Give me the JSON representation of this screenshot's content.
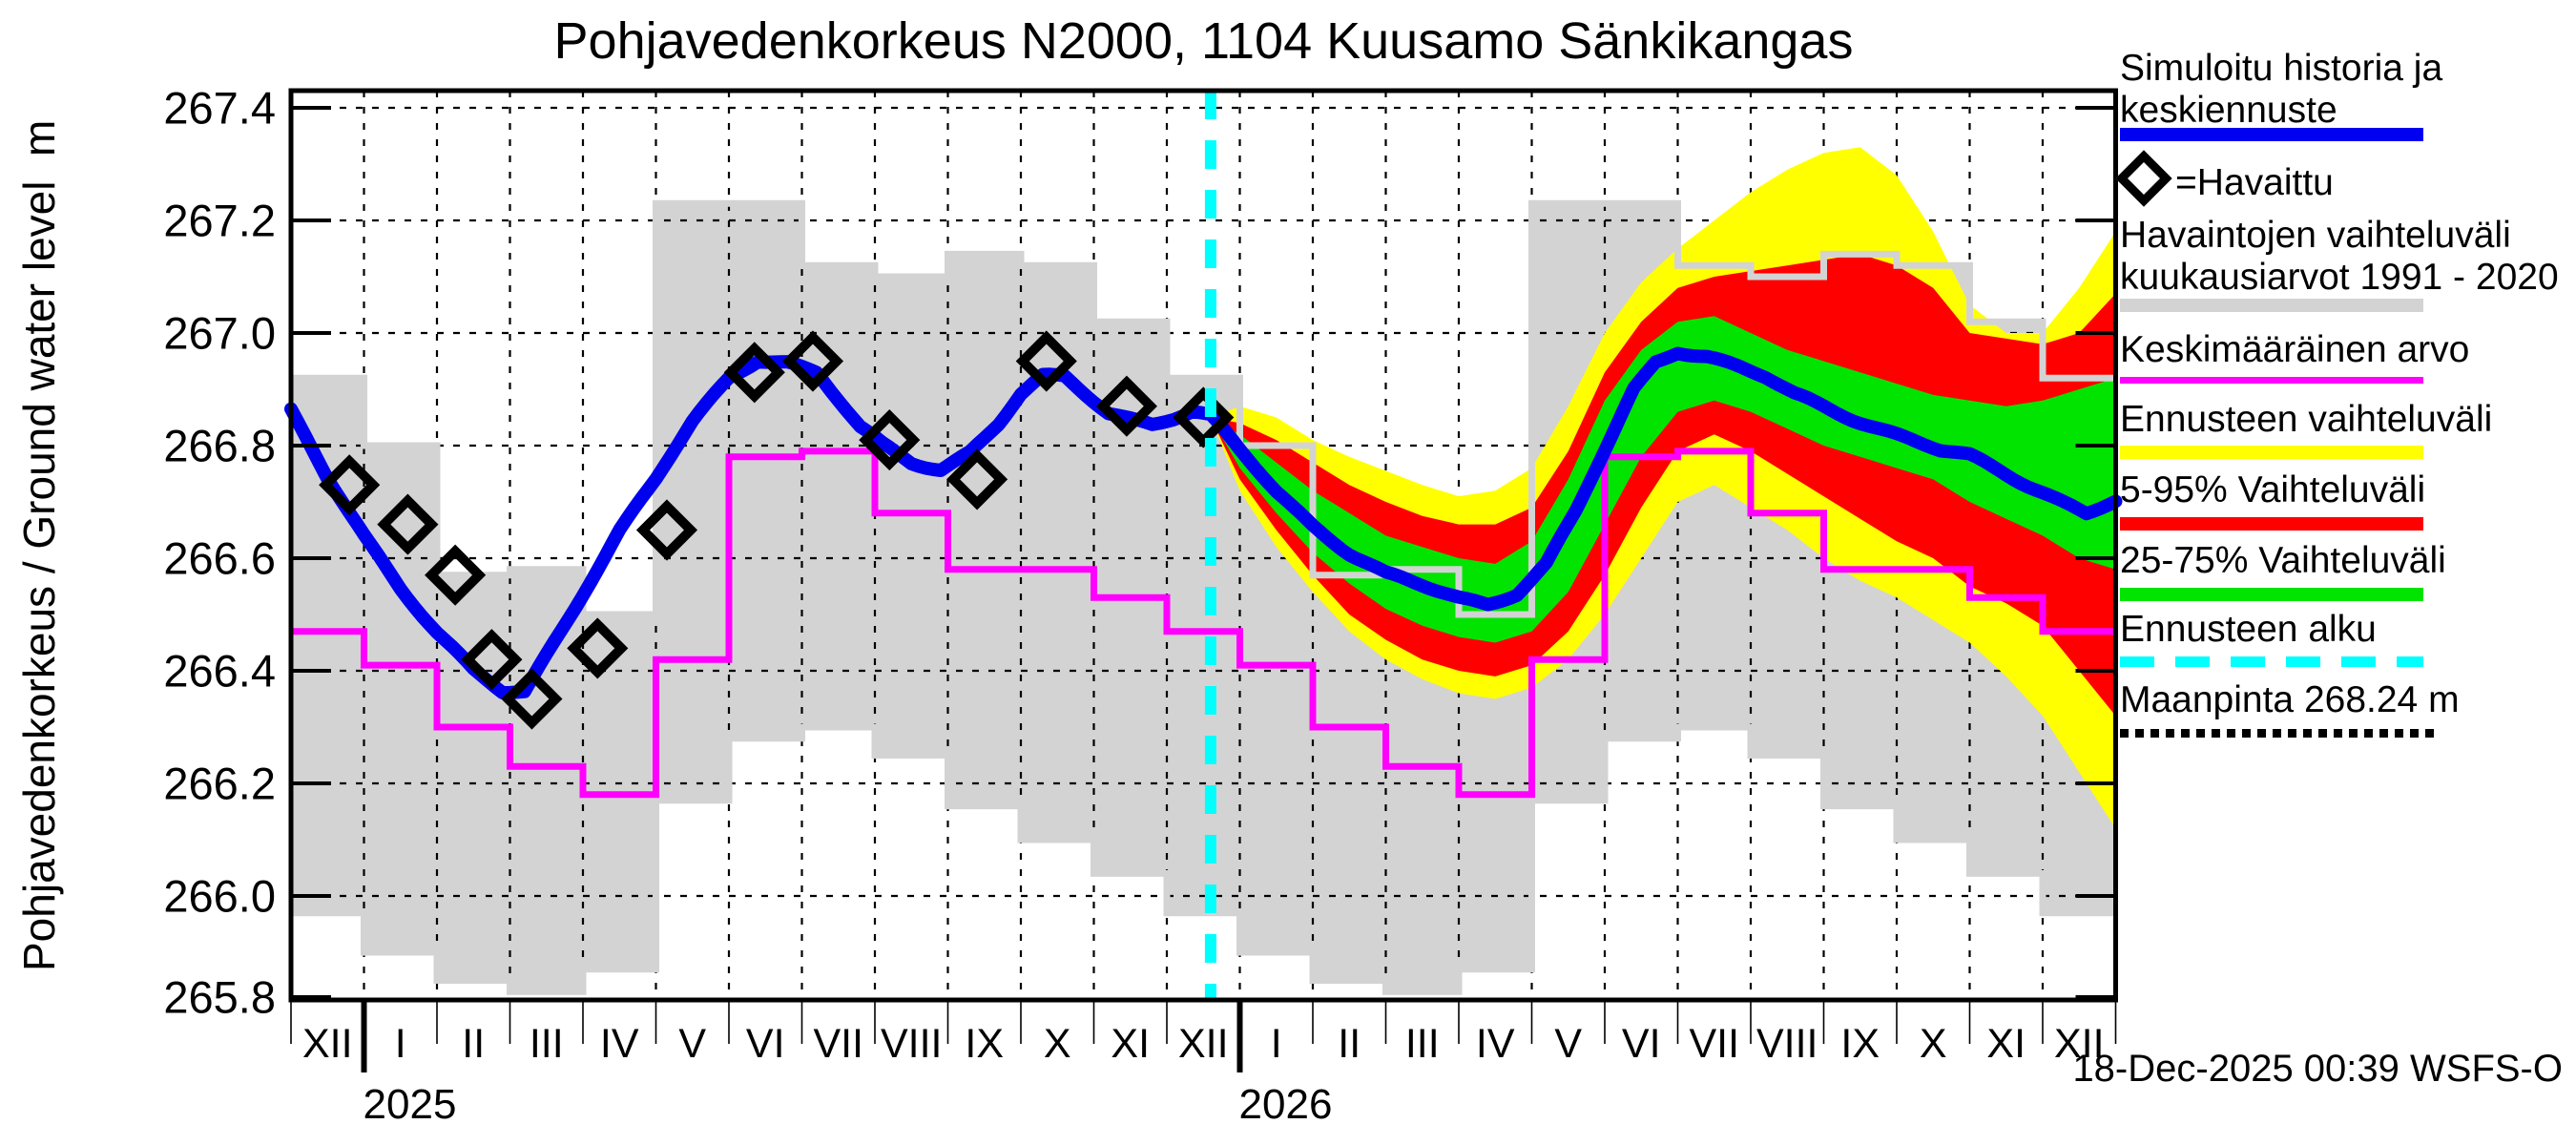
{
  "title": "Pohjavedenkorkeus N2000, 1104 Kuusamo Sänkikangas",
  "y_axis": {
    "label": "Pohjavedenkorkeus / Ground water level  m",
    "tick_labels": [
      "267.4",
      "267.2",
      "267.0",
      "266.8",
      "266.6",
      "266.4",
      "266.2",
      "266.0",
      "265.8"
    ],
    "min": 265.8,
    "max": 267.4,
    "tick_step": 0.2
  },
  "x_axis": {
    "month_labels": [
      "XII",
      "I",
      "II",
      "III",
      "IV",
      "V",
      "VI",
      "VII",
      "VIII",
      "IX",
      "X",
      "XI",
      "XII",
      "I",
      "II",
      "III",
      "IV",
      "V",
      "VI",
      "VII",
      "VIII",
      "IX",
      "X",
      "XI",
      "XII"
    ],
    "year_labels": [
      {
        "label": "2025",
        "boundary_month": 1
      },
      {
        "label": "2026",
        "boundary_month": 13
      }
    ]
  },
  "footer": {
    "timestamp": "18-Dec-2025 00:39 WSFS-O"
  },
  "colors": {
    "simulated_line": "#0000F0",
    "observed_marker": "#000000",
    "climatology_band": "#D3D3D3",
    "mean_line": "#FF00FF",
    "forecast_minmax": "#FFFF00",
    "forecast_5_95": "#FF0000",
    "forecast_25_75": "#00E400",
    "forecast_start": "#00FFFF",
    "ground_surface": "#000000",
    "grid": "#000000"
  },
  "legend": {
    "items": [
      {
        "label": "Simuloitu historia ja keskiennuste",
        "swatch": "line",
        "color": "#0000F0"
      },
      {
        "label": "=Havaittu",
        "swatch": "diamond",
        "color": "#000000"
      },
      {
        "label": "Havaintojen vaihteluväli kuukausiarvot 1991 - 2020",
        "swatch": "band",
        "color": "#D3D3D3"
      },
      {
        "label": "Keskimääräinen arvo",
        "swatch": "line",
        "color": "#FF00FF"
      },
      {
        "label": "Ennusteen vaihteluväli",
        "swatch": "band",
        "color": "#FFFF00"
      },
      {
        "label": "5-95% Vaihteluväli",
        "swatch": "band",
        "color": "#FF0000"
      },
      {
        "label": "25-75% Vaihteluväli",
        "swatch": "band",
        "color": "#00E400"
      },
      {
        "label": "Ennusteen alku",
        "swatch": "dashed-line",
        "color": "#00FFFF"
      },
      {
        "label": "Maanpinta 268.24 m",
        "swatch": "dotted-line",
        "color": "#000000"
      }
    ]
  },
  "chart_data": {
    "type": "line",
    "x_unit": "months from 2024-12-01 (0 = 1 Dec 2024, 24 = 1 Dec 2026)",
    "ylabel": "Pohjavedenkorkeus / Ground water level m",
    "ylim": [
      265.8,
      267.4
    ],
    "xlim_months": [
      0,
      25
    ],
    "grid": true,
    "legend_position": "right",
    "forecast_start_x": 12.6,
    "ground_surface_m": 268.24,
    "climatology_1991_2020_monthly": {
      "months": [
        "Dec",
        "Jan",
        "Feb",
        "Mar",
        "Apr",
        "May",
        "Jun",
        "Jul",
        "Aug",
        "Sep",
        "Oct",
        "Nov"
      ],
      "max": [
        266.92,
        266.8,
        266.57,
        266.58,
        266.5,
        267.23,
        267.23,
        267.12,
        267.1,
        267.14,
        267.12,
        267.02
      ],
      "min": [
        265.97,
        265.9,
        265.85,
        265.83,
        265.87,
        266.17,
        266.28,
        266.3,
        266.25,
        266.16,
        266.1,
        266.04
      ],
      "mean": [
        266.47,
        266.41,
        266.3,
        266.23,
        266.18,
        266.42,
        266.78,
        266.79,
        266.68,
        266.58,
        266.58,
        266.53
      ]
    },
    "observed_points": [
      [
        0.8,
        266.73
      ],
      [
        1.6,
        266.66
      ],
      [
        2.25,
        266.57
      ],
      [
        2.75,
        266.42
      ],
      [
        3.3,
        266.35
      ],
      [
        4.2,
        266.44
      ],
      [
        5.15,
        266.65
      ],
      [
        6.35,
        266.93
      ],
      [
        7.15,
        266.95
      ],
      [
        8.2,
        266.81
      ],
      [
        9.4,
        266.74
      ],
      [
        10.35,
        266.95
      ],
      [
        11.45,
        266.87
      ],
      [
        12.5,
        266.85
      ]
    ],
    "simulated_and_forecast_mean": [
      [
        0,
        266.86
      ],
      [
        0.5,
        266.74
      ],
      [
        1.0,
        266.64
      ],
      [
        1.5,
        266.55
      ],
      [
        2.0,
        266.47
      ],
      [
        2.5,
        266.4
      ],
      [
        2.9,
        266.36
      ],
      [
        3.2,
        266.36
      ],
      [
        3.6,
        266.45
      ],
      [
        4.0,
        266.54
      ],
      [
        4.5,
        266.65
      ],
      [
        5.0,
        266.74
      ],
      [
        5.5,
        266.84
      ],
      [
        6.0,
        266.92
      ],
      [
        6.4,
        266.955
      ],
      [
        6.8,
        266.95
      ],
      [
        7.2,
        266.93
      ],
      [
        7.5,
        266.88
      ],
      [
        7.8,
        266.83
      ],
      [
        8.1,
        266.8
      ],
      [
        8.5,
        266.77
      ],
      [
        8.9,
        266.76
      ],
      [
        9.3,
        266.79
      ],
      [
        9.7,
        266.84
      ],
      [
        10.0,
        266.89
      ],
      [
        10.3,
        266.92
      ],
      [
        10.6,
        266.92
      ],
      [
        10.9,
        266.89
      ],
      [
        11.2,
        266.86
      ],
      [
        11.5,
        266.85
      ],
      [
        11.8,
        266.84
      ],
      [
        12.1,
        266.85
      ],
      [
        12.35,
        266.86
      ],
      [
        12.6,
        266.85
      ],
      [
        13,
        266.79
      ],
      [
        13.5,
        266.72
      ],
      [
        14,
        266.66
      ],
      [
        14.5,
        266.61
      ],
      [
        15,
        266.57
      ],
      [
        15.5,
        266.55
      ],
      [
        16,
        266.53
      ],
      [
        16.4,
        266.52
      ],
      [
        16.8,
        266.54
      ],
      [
        17.2,
        266.59
      ],
      [
        17.6,
        266.68
      ],
      [
        18,
        266.79
      ],
      [
        18.4,
        266.9
      ],
      [
        18.7,
        266.95
      ],
      [
        19,
        266.97
      ],
      [
        19.4,
        266.96
      ],
      [
        19.8,
        266.94
      ],
      [
        20.2,
        266.92
      ],
      [
        20.6,
        266.89
      ],
      [
        21,
        266.87
      ],
      [
        21.4,
        266.85
      ],
      [
        21.8,
        266.83
      ],
      [
        22.2,
        266.81
      ],
      [
        22.6,
        266.79
      ],
      [
        23,
        266.78
      ],
      [
        23.5,
        266.75
      ],
      [
        24,
        266.72
      ],
      [
        24.3,
        266.7
      ],
      [
        24.6,
        266.68
      ],
      [
        25,
        266.7
      ]
    ],
    "forecast_bands_x": [
      12.6,
      13,
      13.5,
      14,
      14.5,
      15,
      15.5,
      16,
      16.5,
      17,
      17.5,
      18,
      18.5,
      19,
      19.5,
      20,
      20.5,
      21,
      21.5,
      22,
      22.5,
      23,
      23.5,
      24,
      24.5,
      25
    ],
    "forecast_minmax_band": {
      "lower": [
        266.85,
        266.72,
        266.62,
        266.54,
        266.47,
        266.42,
        266.385,
        266.36,
        266.35,
        266.37,
        266.42,
        266.5,
        266.6,
        266.7,
        266.73,
        266.69,
        266.65,
        266.6,
        266.56,
        266.53,
        266.49,
        266.45,
        266.39,
        266.32,
        266.22,
        266.12
      ],
      "upper": [
        266.85,
        266.87,
        266.85,
        266.81,
        266.78,
        266.755,
        266.73,
        266.71,
        266.72,
        266.76,
        266.87,
        267.0,
        267.09,
        267.15,
        267.2,
        267.25,
        267.29,
        267.32,
        267.33,
        267.28,
        267.18,
        267.05,
        267.0,
        267.0,
        267.08,
        267.18
      ]
    },
    "forecast_5_95_band": {
      "lower": [
        266.85,
        266.74,
        266.65,
        266.57,
        266.5,
        266.455,
        266.42,
        266.4,
        266.39,
        266.41,
        266.47,
        266.57,
        266.69,
        266.79,
        266.82,
        266.79,
        266.75,
        266.71,
        266.67,
        266.63,
        266.6,
        266.55,
        266.52,
        266.48,
        266.4,
        266.32
      ],
      "upper": [
        266.85,
        266.84,
        266.81,
        266.77,
        266.73,
        266.7,
        266.675,
        266.66,
        266.66,
        266.69,
        266.79,
        266.93,
        267.02,
        267.08,
        267.1,
        267.11,
        267.12,
        267.13,
        267.14,
        267.12,
        267.08,
        267.0,
        266.99,
        266.98,
        267.0,
        267.07
      ]
    },
    "forecast_25_75_band": {
      "lower": [
        266.85,
        266.76,
        266.68,
        266.61,
        266.555,
        266.51,
        266.48,
        266.46,
        266.45,
        266.47,
        266.54,
        266.66,
        266.78,
        266.86,
        266.88,
        266.86,
        266.83,
        266.8,
        266.78,
        266.76,
        266.74,
        266.7,
        266.67,
        266.64,
        266.6,
        266.58
      ],
      "upper": [
        266.85,
        266.82,
        266.77,
        266.72,
        266.68,
        266.64,
        266.62,
        266.6,
        266.59,
        266.63,
        266.74,
        266.88,
        266.97,
        267.02,
        267.03,
        267.0,
        266.97,
        266.95,
        266.93,
        266.91,
        266.89,
        266.88,
        266.87,
        266.88,
        266.9,
        266.92
      ]
    }
  }
}
